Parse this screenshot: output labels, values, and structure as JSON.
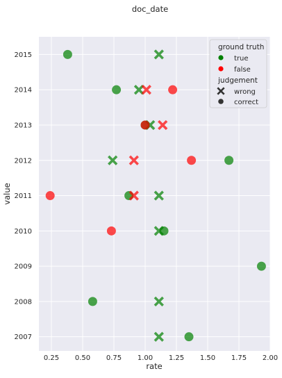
{
  "chart_data": {
    "type": "scatter",
    "title": "doc_date",
    "xlabel": "rate",
    "ylabel": "value",
    "xlim": [
      0.15,
      2.0
    ],
    "ylim": [
      2006.6,
      2015.5
    ],
    "x_ticks": [
      0.25,
      0.5,
      0.75,
      1.0,
      1.25,
      1.5,
      1.75,
      2.0
    ],
    "x_tick_labels": [
      "0.25",
      "0.50",
      "0.75",
      "1.00",
      "1.25",
      "1.50",
      "1.75",
      "2.00"
    ],
    "y_ticks": [
      2007,
      2008,
      2009,
      2010,
      2011,
      2012,
      2013,
      2014,
      2015
    ],
    "y_tick_labels": [
      "2007",
      "2008",
      "2009",
      "2010",
      "2011",
      "2012",
      "2013",
      "2014",
      "2015"
    ],
    "grid": true,
    "legend": {
      "placement": "top-right",
      "hue_title": "ground truth",
      "hue_entries": [
        {
          "label": "true",
          "color": "#008000"
        },
        {
          "label": "false",
          "color": "#ff0000"
        }
      ],
      "style_title": "judgement",
      "style_entries": [
        {
          "label": "wrong",
          "marker": "x"
        },
        {
          "label": "correct",
          "marker": "o"
        }
      ]
    },
    "colors": {
      "true": "#008000",
      "false": "#ff0000",
      "background": "#eaeaf2",
      "grid": "#ffffff"
    },
    "points": [
      {
        "x": 0.38,
        "y": 2015,
        "truth": "true",
        "judgement": "correct"
      },
      {
        "x": 1.11,
        "y": 2015,
        "truth": "true",
        "judgement": "wrong"
      },
      {
        "x": 0.77,
        "y": 2014,
        "truth": "true",
        "judgement": "correct"
      },
      {
        "x": 0.95,
        "y": 2014,
        "truth": "true",
        "judgement": "wrong"
      },
      {
        "x": 1.01,
        "y": 2014,
        "truth": "false",
        "judgement": "wrong"
      },
      {
        "x": 1.22,
        "y": 2014,
        "truth": "false",
        "judgement": "correct"
      },
      {
        "x": 1.04,
        "y": 2013,
        "truth": "true",
        "judgement": "wrong"
      },
      {
        "x": 1.0,
        "y": 2013,
        "truth": "true",
        "judgement": "correct"
      },
      {
        "x": 1.0,
        "y": 2013,
        "truth": "false",
        "judgement": "correct"
      },
      {
        "x": 1.14,
        "y": 2013,
        "truth": "false",
        "judgement": "wrong"
      },
      {
        "x": 0.74,
        "y": 2012,
        "truth": "true",
        "judgement": "wrong"
      },
      {
        "x": 0.91,
        "y": 2012,
        "truth": "false",
        "judgement": "wrong"
      },
      {
        "x": 1.37,
        "y": 2012,
        "truth": "false",
        "judgement": "correct"
      },
      {
        "x": 1.67,
        "y": 2012,
        "truth": "true",
        "judgement": "correct"
      },
      {
        "x": 0.24,
        "y": 2011,
        "truth": "false",
        "judgement": "correct"
      },
      {
        "x": 0.87,
        "y": 2011,
        "truth": "true",
        "judgement": "correct"
      },
      {
        "x": 0.91,
        "y": 2011,
        "truth": "false",
        "judgement": "wrong"
      },
      {
        "x": 1.11,
        "y": 2011,
        "truth": "true",
        "judgement": "wrong"
      },
      {
        "x": 0.73,
        "y": 2010,
        "truth": "false",
        "judgement": "correct"
      },
      {
        "x": 1.15,
        "y": 2010,
        "truth": "true",
        "judgement": "correct"
      },
      {
        "x": 1.11,
        "y": 2010,
        "truth": "true",
        "judgement": "wrong"
      },
      {
        "x": 1.93,
        "y": 2009,
        "truth": "true",
        "judgement": "correct"
      },
      {
        "x": 0.58,
        "y": 2008,
        "truth": "true",
        "judgement": "correct"
      },
      {
        "x": 1.11,
        "y": 2008,
        "truth": "true",
        "judgement": "wrong"
      },
      {
        "x": 1.11,
        "y": 2007,
        "truth": "true",
        "judgement": "wrong"
      },
      {
        "x": 1.35,
        "y": 2007,
        "truth": "true",
        "judgement": "correct"
      }
    ]
  }
}
